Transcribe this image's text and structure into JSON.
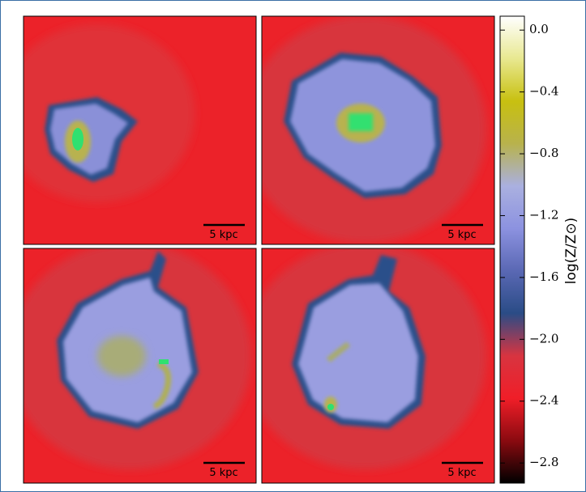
{
  "chart_data": {
    "type": "image-grid",
    "panels": [
      {
        "scale_bar_label": "5 kpc"
      },
      {
        "scale_bar_label": "5 kpc"
      },
      {
        "scale_bar_label": "5 kpc"
      },
      {
        "scale_bar_label": "5 kpc"
      }
    ],
    "colorbar": {
      "label": "log(Z/Z⊙)",
      "lim": [
        -2.93,
        0.09
      ],
      "ticks": [
        {
          "value": 0.0,
          "label": "0.0"
        },
        {
          "value": -0.4,
          "label": "−0.4"
        },
        {
          "value": -0.8,
          "label": "−0.8"
        },
        {
          "value": -1.2,
          "label": "−1.2"
        },
        {
          "value": -1.6,
          "label": "−1.6"
        },
        {
          "value": -2.0,
          "label": "−2.0"
        },
        {
          "value": -2.4,
          "label": "−2.4"
        },
        {
          "value": -2.8,
          "label": "−2.8"
        }
      ],
      "colormap": [
        "#000000",
        "#8a0a10",
        "#f01e28",
        "#d83440",
        "#2a4c86",
        "#5a68b4",
        "#8c92e0",
        "#aab0e0",
        "#b8b24c",
        "#c8c010",
        "#e8e890",
        "#ffffff"
      ]
    }
  }
}
